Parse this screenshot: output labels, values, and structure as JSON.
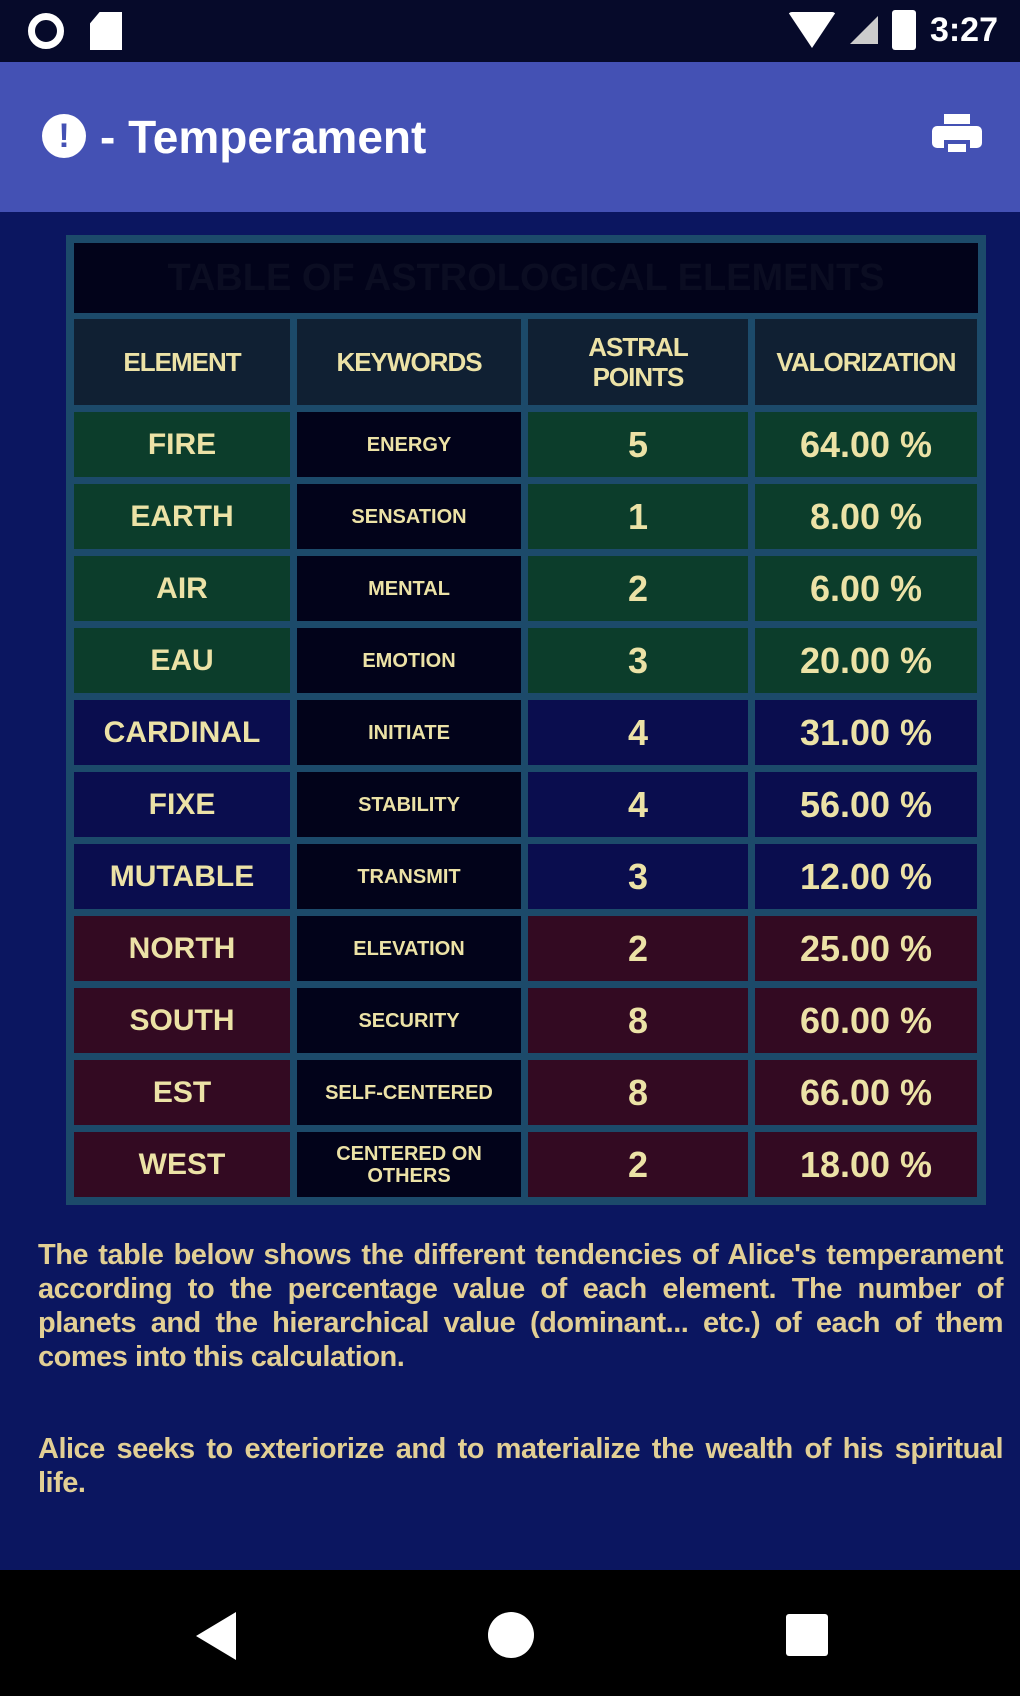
{
  "status_bar": {
    "time": "3:27"
  },
  "app_bar": {
    "title": "- Temperament",
    "info_icon": "!"
  },
  "table": {
    "title": "TABLE OF ASTROLOGICAL ELEMENTS",
    "headers": [
      "ELEMENT",
      "KEYWORDS",
      "ASTRAL POINTS",
      "VALORIZATION"
    ],
    "rows": [
      {
        "element": "FIRE",
        "keyword": "ENERGY",
        "points": "5",
        "value": "64.00 %",
        "group": "green"
      },
      {
        "element": "EARTH",
        "keyword": "SENSATION",
        "points": "1",
        "value": "8.00 %",
        "group": "green"
      },
      {
        "element": "AIR",
        "keyword": "MENTAL",
        "points": "2",
        "value": "6.00 %",
        "group": "green"
      },
      {
        "element": "EAU",
        "keyword": "EMOTION",
        "points": "3",
        "value": "20.00 %",
        "group": "green"
      },
      {
        "element": "CARDINAL",
        "keyword": "INITIATE",
        "points": "4",
        "value": "31.00 %",
        "group": "blue"
      },
      {
        "element": "FIXE",
        "keyword": "STABILITY",
        "points": "4",
        "value": "56.00 %",
        "group": "blue"
      },
      {
        "element": "MUTABLE",
        "keyword": "TRANSMIT",
        "points": "3",
        "value": "12.00 %",
        "group": "blue"
      },
      {
        "element": "NORTH",
        "keyword": "ELEVATION",
        "points": "2",
        "value": "25.00 %",
        "group": "maroon"
      },
      {
        "element": "SOUTH",
        "keyword": "SECURITY",
        "points": "8",
        "value": "60.00 %",
        "group": "maroon"
      },
      {
        "element": "EST",
        "keyword": "SELF-CENTERED",
        "points": "8",
        "value": "66.00 %",
        "group": "maroon"
      },
      {
        "element": "WEST",
        "keyword": "CENTERED ON OTHERS",
        "points": "2",
        "value": "18.00 %",
        "group": "maroon"
      }
    ]
  },
  "paragraphs": [
    "The table below shows the different tendencies of Alice's temperament according to the percentage value of each element. The number of planets and the hierarchical value (dominant... etc.) of each of them comes into this calculation.",
    "Alice seeks to exteriorize and to materialize the wealth of his spiritual life."
  ],
  "colors": {
    "background": "#0b1660",
    "app_bar": "#4451b4",
    "text": "#ece2a6",
    "green_row": "#0c3d2b",
    "blue_row": "#0a0d4e",
    "maroon_row": "#330a22"
  }
}
